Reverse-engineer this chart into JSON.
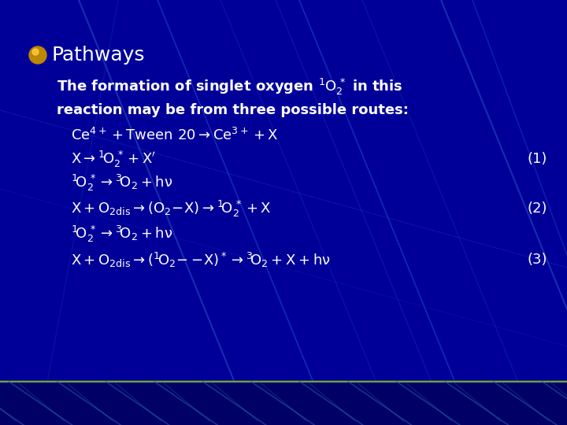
{
  "bg_color": "#000099",
  "title": "Pathways",
  "title_color": "#ffffff",
  "title_fontsize": 18,
  "bullet_color": "#cc8800",
  "text_color": "#ffffff",
  "body_fontsize": 13,
  "equation_fontsize": 13,
  "number_fontsize": 13
}
